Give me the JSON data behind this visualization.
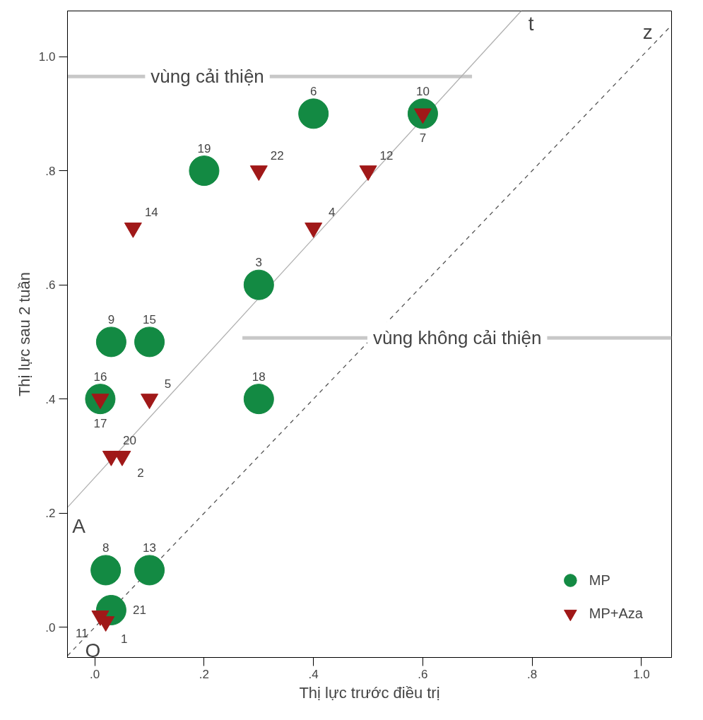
{
  "chart_data": {
    "type": "scatter",
    "xlabel": "Thị lực trước điều trị",
    "ylabel": "Thị lực sau 2 tuần",
    "xlim": [
      -0.05,
      1.055
    ],
    "ylim": [
      -0.053,
      1.08
    ],
    "xticks": [
      {
        "value": 0,
        "label": ".0"
      },
      {
        "value": 0.2,
        "label": ".2"
      },
      {
        "value": 0.4,
        "label": ".4"
      },
      {
        "value": 0.6,
        "label": ".6"
      },
      {
        "value": 0.8,
        "label": ".8"
      },
      {
        "value": 1.0,
        "label": "1.0"
      }
    ],
    "yticks": [
      {
        "value": 0,
        "label": ".0"
      },
      {
        "value": 0.2,
        "label": ".2"
      },
      {
        "value": 0.4,
        "label": ".4"
      },
      {
        "value": 0.6,
        "label": ".6"
      },
      {
        "value": 0.8,
        "label": ".8"
      },
      {
        "value": 1.0,
        "label": "1.0"
      }
    ],
    "grid": false,
    "legend": "bottom right",
    "series": [
      {
        "type": "line",
        "color": "#c8c8c8",
        "line_style": "solid",
        "x": [
          -0.05,
          0.69
        ],
        "values": [
          0.965,
          0.965
        ]
      },
      {
        "type": "line",
        "color": "#c8c8c8",
        "line_style": "solid",
        "x": [
          0.27,
          1.055
        ],
        "values": [
          0.507,
          0.507
        ]
      },
      {
        "type": "line",
        "color": "#b0b0b0",
        "line_style": "solid",
        "x": [
          -0.05,
          0.78
        ],
        "values": [
          0.21,
          1.08
        ]
      },
      {
        "type": "line",
        "color": "#555555",
        "line_style": "dashed",
        "x": [
          -0.05,
          1.05
        ],
        "values": [
          -0.05,
          1.05
        ]
      },
      {
        "name": "MP",
        "color": "#138a43",
        "marker": "circle",
        "x": [
          0.4,
          0.6,
          0.2,
          0.3,
          0.03,
          0.1,
          0.01,
          0.3,
          0.02,
          0.1,
          0.03
        ],
        "values": [
          0.9,
          0.9,
          0.8,
          0.6,
          0.5,
          0.5,
          0.4,
          0.4,
          0.1,
          0.1,
          0.03
        ]
      },
      {
        "name": "MP+Aza",
        "color": "#a01818",
        "marker": "triangle",
        "x": [
          0.6,
          0.3,
          0.5,
          0.4,
          0.07,
          0.1,
          0.01,
          0.03,
          0.05,
          0.01,
          0.02
        ],
        "values": [
          0.9,
          0.8,
          0.8,
          0.7,
          0.7,
          0.4,
          0.4,
          0.3,
          0.3,
          0.02,
          0.01
        ]
      }
    ],
    "annotations": [
      {
        "text": "vùng cải thiện",
        "x": 0.206,
        "y": 0.965
      },
      {
        "text": "vùng không cải thiện",
        "x": 0.663,
        "y": 0.507
      },
      {
        "text": "t",
        "x": 0.78,
        "y": 1.08
      },
      {
        "text": "z",
        "x": 1.05,
        "y": 1.05
      },
      {
        "text": "A",
        "x": -0.05,
        "y": 0.21
      },
      {
        "text": "O",
        "x": -0.05,
        "y": -0.05
      },
      {
        "text": "6",
        "x": 0.4,
        "y": 0.9
      },
      {
        "text": "10",
        "x": 0.6,
        "y": 0.9
      },
      {
        "text": "19",
        "x": 0.2,
        "y": 0.8
      },
      {
        "text": "3",
        "x": 0.3,
        "y": 0.6
      },
      {
        "text": "9",
        "x": 0.03,
        "y": 0.5
      },
      {
        "text": "15",
        "x": 0.1,
        "y": 0.5
      },
      {
        "text": "16",
        "x": 0.01,
        "y": 0.4
      },
      {
        "text": "18",
        "x": 0.3,
        "y": 0.4
      },
      {
        "text": "8",
        "x": 0.02,
        "y": 0.1
      },
      {
        "text": "13",
        "x": 0.1,
        "y": 0.1
      },
      {
        "text": "21",
        "x": 0.03,
        "y": 0.03
      },
      {
        "text": "7",
        "x": 0.6,
        "y": 0.9
      },
      {
        "text": "22",
        "x": 0.3,
        "y": 0.8
      },
      {
        "text": "12",
        "x": 0.5,
        "y": 0.8
      },
      {
        "text": "4",
        "x": 0.4,
        "y": 0.7
      },
      {
        "text": "14",
        "x": 0.07,
        "y": 0.7
      },
      {
        "text": "5",
        "x": 0.1,
        "y": 0.4
      },
      {
        "text": "17",
        "x": 0.01,
        "y": 0.4
      },
      {
        "text": "20",
        "x": 0.03,
        "y": 0.3
      },
      {
        "text": "2",
        "x": 0.05,
        "y": 0.3
      },
      {
        "text": "11",
        "x": 0.01,
        "y": 0.02
      },
      {
        "text": "1",
        "x": 0.02,
        "y": 0.01
      }
    ]
  }
}
